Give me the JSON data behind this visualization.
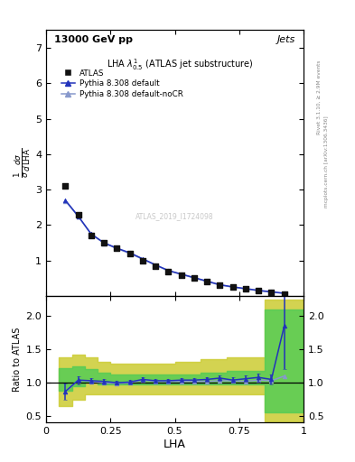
{
  "title_top": "13000 GeV pp",
  "title_right": "Jets",
  "watermark": "ATLAS_2019_I1724098",
  "right_label_top": "Rivet 3.1.10, ≥ 2.9M events",
  "right_label_bot": "mcplots.cern.ch [arXiv:1306.3436]",
  "ylabel_main": "$\\frac{1}{\\sigma}\\frac{d\\sigma}{d\\,\\mathrm{LHA}}$",
  "ylabel_ratio": "Ratio to ATLAS",
  "xlabel": "LHA",
  "atlas_x": [
    0.075,
    0.125,
    0.175,
    0.225,
    0.275,
    0.325,
    0.375,
    0.425,
    0.475,
    0.525,
    0.575,
    0.625,
    0.675,
    0.725,
    0.775,
    0.825,
    0.875,
    0.925
  ],
  "atlas_y": [
    3.1,
    2.3,
    1.7,
    1.5,
    1.35,
    1.2,
    1.0,
    0.85,
    0.7,
    0.6,
    0.5,
    0.4,
    0.3,
    0.25,
    0.2,
    0.15,
    0.1,
    0.05
  ],
  "py_def_x": [
    0.075,
    0.125,
    0.175,
    0.225,
    0.275,
    0.325,
    0.375,
    0.425,
    0.475,
    0.525,
    0.575,
    0.625,
    0.675,
    0.725,
    0.775,
    0.825,
    0.875,
    0.925
  ],
  "py_def_y": [
    2.7,
    2.25,
    1.75,
    1.5,
    1.35,
    1.22,
    1.05,
    0.88,
    0.72,
    0.62,
    0.52,
    0.42,
    0.32,
    0.26,
    0.21,
    0.16,
    0.12,
    0.08
  ],
  "py_nocr_x": [
    0.075,
    0.125,
    0.175,
    0.225,
    0.275,
    0.325,
    0.375,
    0.425,
    0.475,
    0.525,
    0.575,
    0.625,
    0.675,
    0.725,
    0.775,
    0.825,
    0.875,
    0.925
  ],
  "py_nocr_y": [
    2.68,
    2.24,
    1.74,
    1.49,
    1.34,
    1.2,
    1.04,
    0.87,
    0.71,
    0.61,
    0.51,
    0.41,
    0.31,
    0.25,
    0.2,
    0.15,
    0.11,
    0.075
  ],
  "ratio_def_x": [
    0.075,
    0.125,
    0.175,
    0.225,
    0.275,
    0.325,
    0.375,
    0.425,
    0.475,
    0.525,
    0.575,
    0.625,
    0.675,
    0.725,
    0.775,
    0.825,
    0.875,
    0.925
  ],
  "ratio_def_y": [
    0.87,
    1.04,
    1.03,
    1.02,
    1.0,
    1.01,
    1.05,
    1.03,
    1.03,
    1.04,
    1.04,
    1.05,
    1.07,
    1.04,
    1.06,
    1.08,
    1.05,
    1.85
  ],
  "ratio_def_err": [
    0.12,
    0.06,
    0.04,
    0.04,
    0.03,
    0.03,
    0.03,
    0.03,
    0.03,
    0.03,
    0.03,
    0.03,
    0.04,
    0.04,
    0.05,
    0.06,
    0.07,
    0.65
  ],
  "ratio_nocr_x": [
    0.075,
    0.125,
    0.175,
    0.225,
    0.275,
    0.325,
    0.375,
    0.425,
    0.475,
    0.525,
    0.575,
    0.625,
    0.675,
    0.725,
    0.775,
    0.825,
    0.875,
    0.925
  ],
  "ratio_nocr_y": [
    0.865,
    1.04,
    1.02,
    1.0,
    0.99,
    1.0,
    1.04,
    1.02,
    1.02,
    1.02,
    1.02,
    1.02,
    1.03,
    1.03,
    1.02,
    1.04,
    1.03,
    1.1
  ],
  "band_edges": [
    0.05,
    0.1,
    0.15,
    0.2,
    0.25,
    0.3,
    0.35,
    0.4,
    0.45,
    0.5,
    0.55,
    0.6,
    0.65,
    0.7,
    0.75,
    0.8,
    0.85,
    0.9,
    0.95,
    1.0
  ],
  "green_lo": [
    0.88,
    0.95,
    1.02,
    0.97,
    0.97,
    0.97,
    0.97,
    0.97,
    0.97,
    0.97,
    0.97,
    0.97,
    0.97,
    0.97,
    0.97,
    0.97,
    0.55,
    0.55,
    0.55,
    0.55
  ],
  "green_hi": [
    1.22,
    1.25,
    1.2,
    1.15,
    1.12,
    1.12,
    1.12,
    1.12,
    1.12,
    1.12,
    1.12,
    1.15,
    1.15,
    1.18,
    1.18,
    1.18,
    2.1,
    2.1,
    2.1,
    2.1
  ],
  "yellow_lo": [
    0.65,
    0.75,
    0.82,
    0.82,
    0.82,
    0.82,
    0.82,
    0.82,
    0.82,
    0.82,
    0.82,
    0.82,
    0.82,
    0.82,
    0.82,
    0.82,
    0.42,
    0.42,
    0.42,
    0.42
  ],
  "yellow_hi": [
    1.38,
    1.42,
    1.38,
    1.32,
    1.28,
    1.28,
    1.28,
    1.28,
    1.28,
    1.32,
    1.32,
    1.35,
    1.35,
    1.38,
    1.38,
    1.38,
    2.25,
    2.25,
    2.25,
    2.25
  ],
  "color_def": "#2233bb",
  "color_nocr": "#8899cc",
  "color_atlas": "#111111",
  "color_green": "#55cc55",
  "color_yellow": "#cccc33",
  "ylim_main": [
    0.0,
    7.5
  ],
  "ylim_ratio": [
    0.4,
    2.3
  ],
  "xlim": [
    0.0,
    1.0
  ],
  "main_yticks": [
    1,
    2,
    3,
    4,
    5,
    6,
    7
  ],
  "ratio_yticks": [
    0.5,
    1.0,
    1.5,
    2.0
  ],
  "xticks": [
    0.0,
    0.25,
    0.5,
    0.75,
    1.0
  ]
}
